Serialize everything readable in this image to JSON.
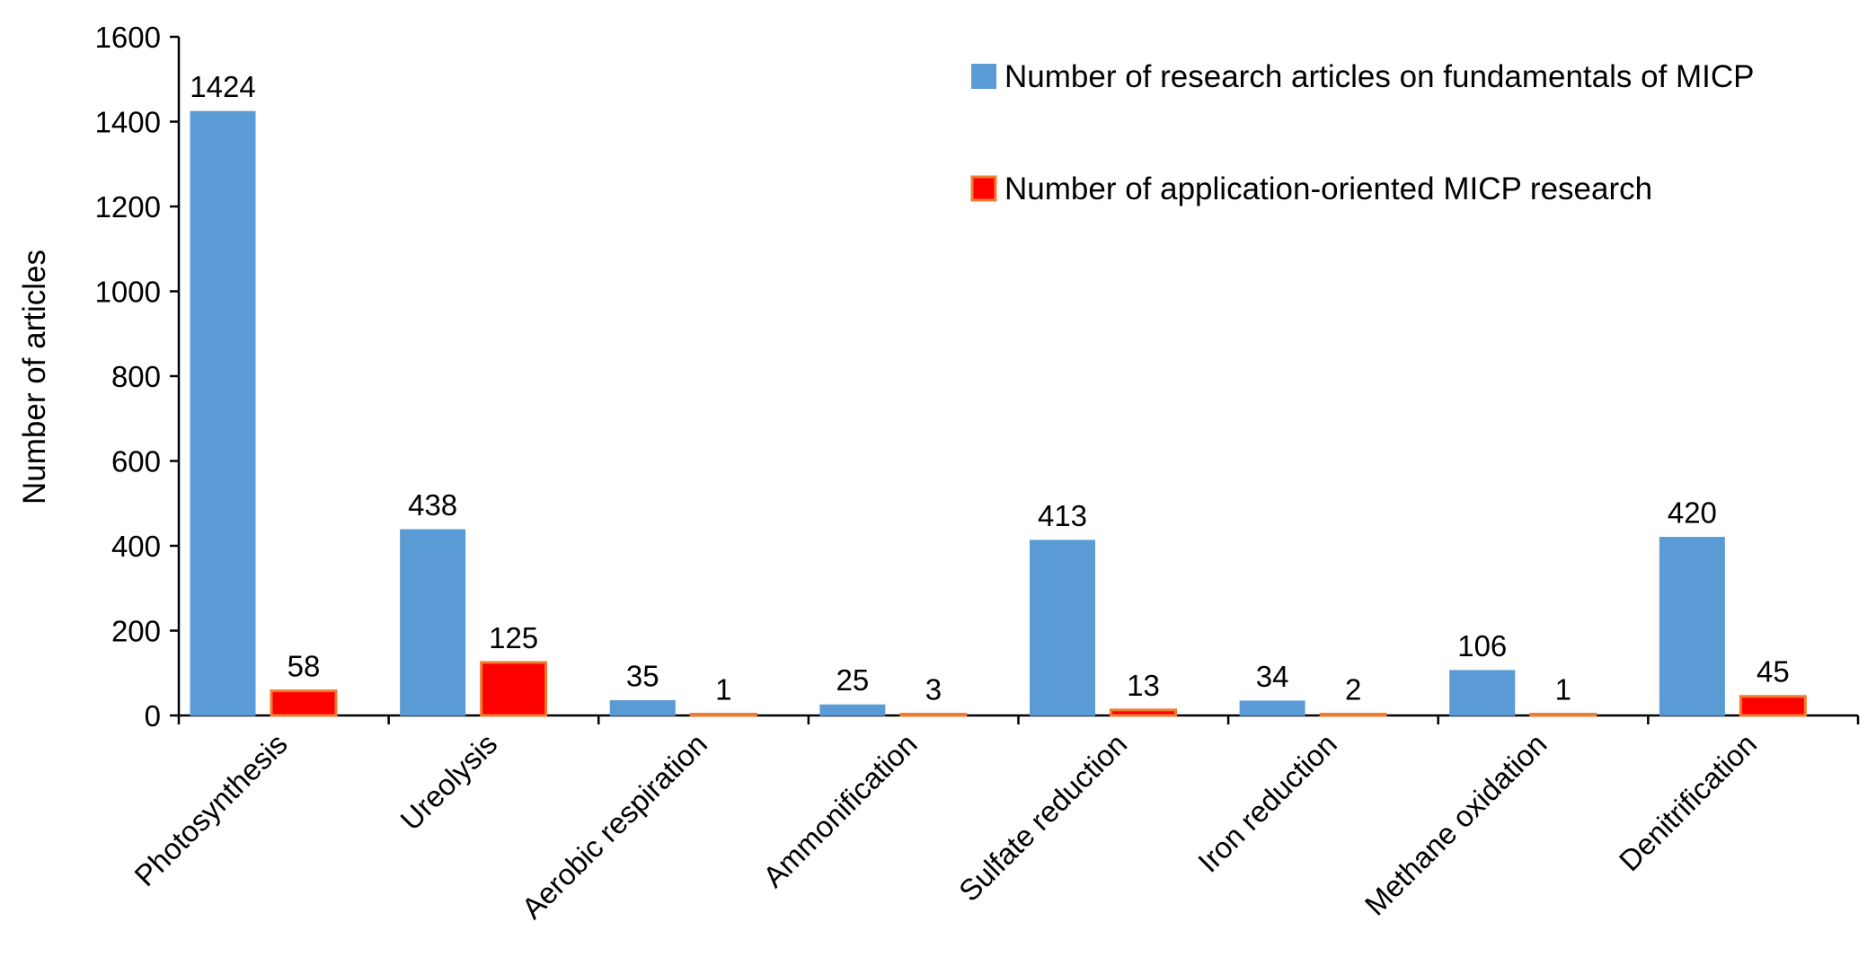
{
  "chart_data": {
    "type": "bar",
    "categories": [
      "Photosynthesis",
      "Ureolysis",
      "Aerobic respiration",
      "Ammonification",
      "Sulfate reduction",
      "Iron reduction",
      "Methane oxidation",
      "Denitrification"
    ],
    "series": [
      {
        "name": "Number of research articles on fundamentals of MICP",
        "values": [
          1424,
          438,
          35,
          25,
          413,
          34,
          106,
          420
        ],
        "color": "#5b9bd5",
        "border": "#5b9bd5"
      },
      {
        "name": "Number of application-oriented MICP research",
        "values": [
          58,
          125,
          1,
          3,
          13,
          2,
          1,
          45
        ],
        "color": "#ff0000",
        "border": "#ed7d31"
      }
    ],
    "title": "",
    "xlabel": "",
    "ylabel": "Number of articles",
    "ylim": [
      0,
      1600
    ],
    "yticks": [
      0,
      200,
      400,
      600,
      800,
      1000,
      1200,
      1400,
      1600
    ],
    "grid": false,
    "legend": "top-right",
    "data_labels": true
  }
}
